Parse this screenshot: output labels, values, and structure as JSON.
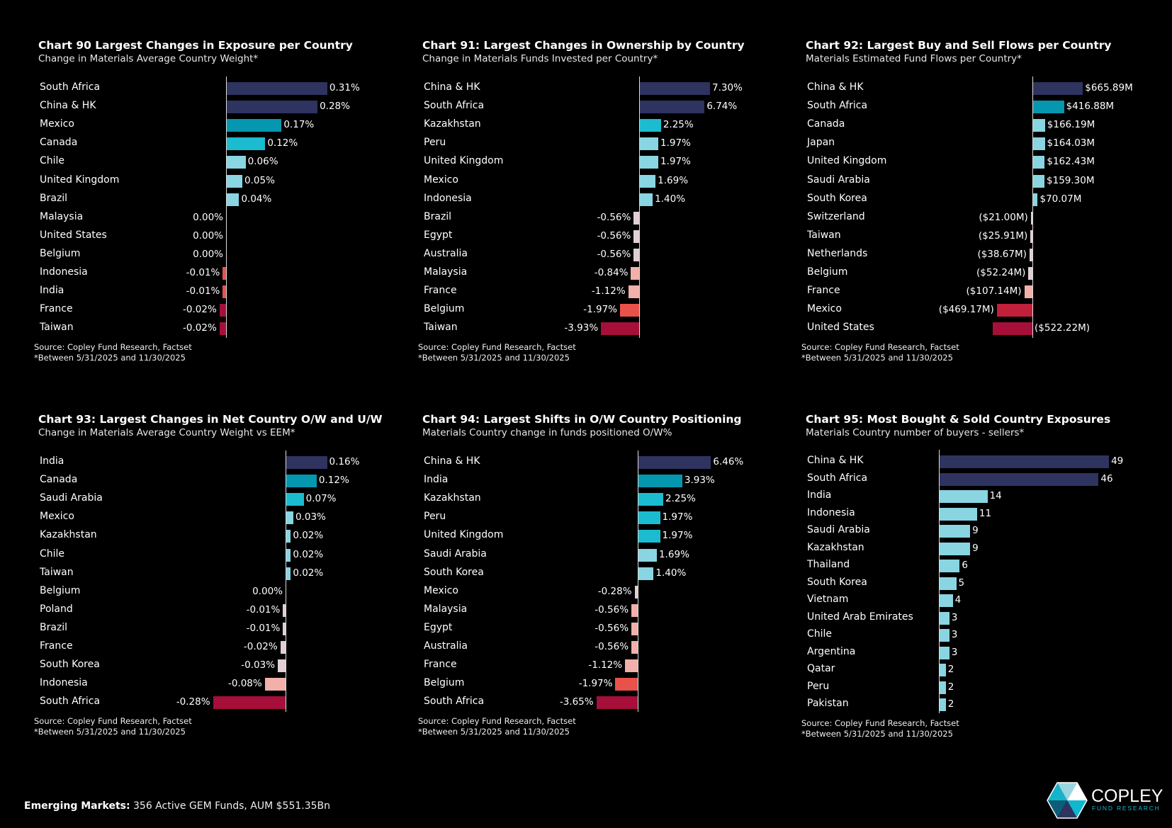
{
  "charts": [
    {
      "title": "Chart 90  Largest Changes in Exposure per Country",
      "subtitle": "Change in Materials Average Country Weight*",
      "source": "Source:  Copley Fund Research, Factset",
      "note": "*Between 5/31/2025 and 11/30/2025",
      "chart_data": {
        "type": "bar",
        "orientation": "horizontal",
        "unit": "%",
        "categories": [
          "South Africa",
          "China & HK",
          "Mexico",
          "Canada",
          "Chile",
          "United Kingdom",
          "Brazil",
          "Malaysia",
          "United States",
          "Belgium",
          "Indonesia",
          "India",
          "France",
          "Taiwan"
        ],
        "values": [
          0.31,
          0.28,
          0.17,
          0.12,
          0.06,
          0.05,
          0.04,
          0.0,
          0.0,
          0.0,
          -0.01,
          -0.01,
          -0.02,
          -0.02
        ],
        "labels": [
          "0.31%",
          "0.28%",
          "0.17%",
          "0.12%",
          "0.06%",
          "0.05%",
          "0.04%",
          "0.00%",
          "0.00%",
          "0.00%",
          "-0.01%",
          "-0.01%",
          "-0.02%",
          "-0.02%"
        ]
      }
    },
    {
      "title": "Chart 91:  Largest Changes in Ownership by Country",
      "subtitle": "Change in Materials Funds Invested per Country*",
      "source": "Source:  Copley Fund Research, Factset",
      "note": "*Between 5/31/2025 and 11/30/2025",
      "chart_data": {
        "type": "bar",
        "orientation": "horizontal",
        "unit": "%",
        "categories": [
          "China & HK",
          "South Africa",
          "Kazakhstan",
          "Peru",
          "United Kingdom",
          "Mexico",
          "Indonesia",
          "Brazil",
          "Egypt",
          "Australia",
          "Malaysia",
          "France",
          "Belgium",
          "Taiwan"
        ],
        "values": [
          7.3,
          6.74,
          2.25,
          1.97,
          1.97,
          1.69,
          1.4,
          -0.56,
          -0.56,
          -0.56,
          -0.84,
          -1.12,
          -1.97,
          -3.93
        ],
        "labels": [
          "7.30%",
          "6.74%",
          "2.25%",
          "1.97%",
          "1.97%",
          "1.69%",
          "1.40%",
          "-0.56%",
          "-0.56%",
          "-0.56%",
          "-0.84%",
          "-1.12%",
          "-1.97%",
          "-3.93%"
        ]
      }
    },
    {
      "title": "Chart 92:  Largest Buy and Sell Flows per Country",
      "subtitle": "Materials Estimated Fund Flows per Country*",
      "source": "Source:  Copley Fund Research, Factset",
      "note": "*Between 5/31/2025 and 11/30/2025",
      "chart_data": {
        "type": "bar",
        "orientation": "horizontal",
        "unit": "$M",
        "categories": [
          "China & HK",
          "South Africa",
          "Canada",
          "Japan",
          "United Kingdom",
          "Saudi Arabia",
          "South Korea",
          "Switzerland",
          "Taiwan",
          "Netherlands",
          "Belgium",
          "France",
          "Mexico",
          "United States"
        ],
        "values": [
          665.89,
          416.88,
          166.19,
          164.03,
          162.43,
          159.3,
          70.07,
          -21.0,
          -25.91,
          -38.67,
          -52.24,
          -107.14,
          -469.17,
          -522.22
        ],
        "labels": [
          "$665.89M",
          "$416.88M",
          "$166.19M",
          "$164.03M",
          "$162.43M",
          "$159.30M",
          "$70.07M",
          "($21.00M)",
          "($25.91M)",
          "($38.67M)",
          "($52.24M)",
          "($107.14M)",
          "($469.17M)",
          "($522.22M)"
        ]
      }
    },
    {
      "title": "Chart 93:  Largest Changes in Net Country O/W and U/W",
      "subtitle": "Change in Materials Average Country Weight vs EEM*",
      "source": "Source:  Copley Fund Research, Factset",
      "note": "*Between 5/31/2025 and 11/30/2025",
      "chart_data": {
        "type": "bar",
        "orientation": "horizontal",
        "unit": "%",
        "categories": [
          "India",
          "Canada",
          "Saudi Arabia",
          "Mexico",
          "Kazakhstan",
          "Chile",
          "Taiwan",
          "Belgium",
          "Poland",
          "Brazil",
          "France",
          "South Korea",
          "Indonesia",
          "South Africa"
        ],
        "values": [
          0.16,
          0.12,
          0.07,
          0.03,
          0.02,
          0.02,
          0.02,
          0.0,
          -0.01,
          -0.01,
          -0.02,
          -0.03,
          -0.08,
          -0.28
        ],
        "labels": [
          "0.16%",
          "0.12%",
          "0.07%",
          "0.03%",
          "0.02%",
          "0.02%",
          "0.02%",
          "0.00%",
          "-0.01%",
          "-0.01%",
          "-0.02%",
          "-0.03%",
          "-0.08%",
          "-0.28%"
        ]
      }
    },
    {
      "title": "Chart 94:  Largest Shifts in O/W Country Positioning",
      "subtitle": "Materials Country change in funds positioned O/W%",
      "source": "Source:  Copley Fund Research, Factset",
      "note": "*Between 5/31/2025 and 11/30/2025",
      "chart_data": {
        "type": "bar",
        "orientation": "horizontal",
        "unit": "%",
        "categories": [
          "China & HK",
          "India",
          "Kazakhstan",
          "Peru",
          "United Kingdom",
          "Saudi Arabia",
          "South Korea",
          "Mexico",
          "Malaysia",
          "Egypt",
          "Australia",
          "France",
          "Belgium",
          "South Africa"
        ],
        "values": [
          6.46,
          3.93,
          2.25,
          1.97,
          1.97,
          1.69,
          1.4,
          -0.28,
          -0.56,
          -0.56,
          -0.56,
          -1.12,
          -1.97,
          -3.65
        ],
        "labels": [
          "6.46%",
          "3.93%",
          "2.25%",
          "1.97%",
          "1.97%",
          "1.69%",
          "1.40%",
          "-0.28%",
          "-0.56%",
          "-0.56%",
          "-0.56%",
          "-1.12%",
          "-1.97%",
          "-3.65%"
        ]
      }
    },
    {
      "title": "Chart 95:  Most Bought & Sold Country Exposures",
      "subtitle": "Materials Country number of buyers - sellers*",
      "source": "Source:  Copley Fund Research, Factset",
      "note": "*Between 5/31/2025 and 11/30/2025",
      "chart_data": {
        "type": "bar",
        "orientation": "horizontal",
        "unit": "",
        "categories": [
          "China & HK",
          "South Africa",
          "India",
          "Indonesia",
          "Saudi Arabia",
          "Kazakhstan",
          "Thailand",
          "South Korea",
          "Vietnam",
          "United Arab Emirates",
          "Chile",
          "Argentina",
          "Qatar",
          "Peru",
          "Pakistan"
        ],
        "values": [
          49,
          46,
          14,
          11,
          9,
          9,
          6,
          5,
          4,
          3,
          3,
          3,
          2,
          2,
          2
        ],
        "labels": [
          "49",
          "46",
          "14",
          "11",
          "9",
          "9",
          "6",
          "5",
          "4",
          "3",
          "3",
          "3",
          "2",
          "2",
          "2"
        ]
      }
    }
  ],
  "footer": {
    "bold": "Emerging Markets:",
    "text": " 356 Active GEM Funds, AUM $551.35Bn"
  },
  "logo": {
    "name": "COPLEY",
    "tagline": "FUND RESEARCH"
  },
  "colors": {
    "background": "#000000",
    "pos_dark": "#2e3360",
    "pos_navy": "#1f3f66",
    "pos_teal": "#0596b0",
    "pos_cyan": "#1cbcd0",
    "pos_light": "#89d5e2",
    "neg_light": "#e0cfd4",
    "neg_pink": "#f2b0aa",
    "neg_red": "#e8524a",
    "neg_crimson": "#c0203a",
    "neg_dark": "#a50f3a"
  }
}
